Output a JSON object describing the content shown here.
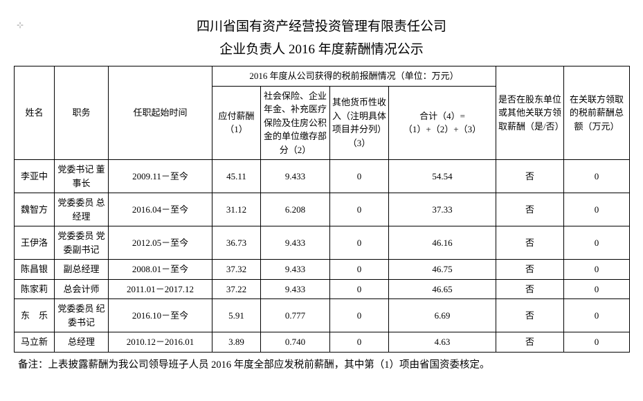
{
  "title_line1": "四川省国有资产经营投资管理有限责任公司",
  "title_line2": "企业负责人 2016 年度薪酬情况公示",
  "headers": {
    "name": "姓名",
    "position": "职务",
    "period": "任职起始时间",
    "comp_group": "2016 年度从公司获得的税前报酬情况（单位：万元）",
    "payable": "应付薪酬（1）",
    "insurance": "社会保险、企业年金、补充医疗保险及住房公积金的单位缴存部分（2）",
    "other_income": "其他货币性收入（注明具体项目并分列）（3）",
    "total": "合计（4）=（1）+（2）+（3）",
    "related_flag": "是否在股东单位或其他关联方领取薪酬（是/否）",
    "related_amount": "在关联方领取的税前薪酬总额（万元）"
  },
  "rows": [
    {
      "name": "李亚中",
      "position": "党委书记 董事长",
      "period": "2009.11－至今",
      "payable": "45.11",
      "insurance": "9.433",
      "other": "0",
      "total": "54.54",
      "flag": "否",
      "amount": "0"
    },
    {
      "name": "魏智方",
      "position": "党委委员 总经理",
      "period": "2016.04－至今",
      "payable": "31.12",
      "insurance": "6.208",
      "other": "0",
      "total": "37.33",
      "flag": "否",
      "amount": "0"
    },
    {
      "name": "王伊洛",
      "position": "党委委员 党委副书记",
      "period": "2012.05－至今",
      "payable": "36.73",
      "insurance": "9.433",
      "other": "0",
      "total": "46.16",
      "flag": "否",
      "amount": "0"
    },
    {
      "name": "陈昌银",
      "position": "副总经理",
      "period": "2008.01－至今",
      "payable": "37.32",
      "insurance": "9.433",
      "other": "0",
      "total": "46.75",
      "flag": "否",
      "amount": "0"
    },
    {
      "name": "陈家莉",
      "position": "总会计师",
      "period": "2011.01－2017.12",
      "payable": "37.22",
      "insurance": "9.433",
      "other": "0",
      "total": "46.65",
      "flag": "否",
      "amount": "0"
    },
    {
      "name": "东　乐",
      "position": "党委委员 纪委书记",
      "period": "2016.10－至今",
      "payable": "5.91",
      "insurance": "0.777",
      "other": "0",
      "total": "6.69",
      "flag": "否",
      "amount": "0"
    },
    {
      "name": "马立新",
      "position": "总经理",
      "period": "2010.12－2016.01",
      "payable": "3.89",
      "insurance": "0.740",
      "other": "0",
      "total": "4.63",
      "flag": "否",
      "amount": "0"
    }
  ],
  "footnote": "备注：上表披露薪酬为我公司领导班子人员 2016 年度全部应发税前薪酬，其中第（1）项由省国资委核定。"
}
